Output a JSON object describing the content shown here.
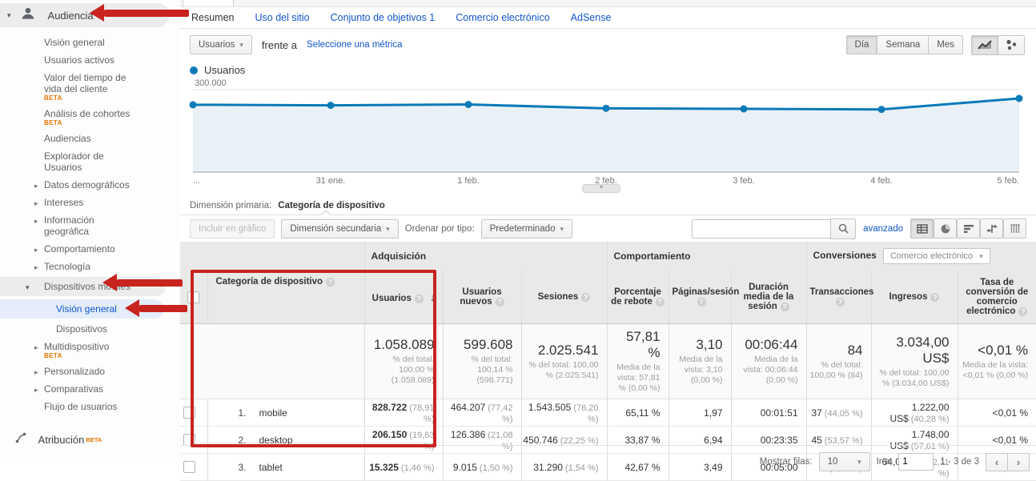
{
  "colors": {
    "accent_blue": "#1155cc",
    "chart_line": "#0d7ab8",
    "chart_fill": "#e9f1f7",
    "annotation_red": "#c8231f",
    "beta_orange": "#e37400"
  },
  "sidebar": {
    "section_label": "Audiencia",
    "items": [
      {
        "label": "Visión general"
      },
      {
        "label": "Usuarios activos"
      },
      {
        "label": "Valor del tiempo de vida del cliente",
        "beta": "BETA"
      },
      {
        "label": "Análisis de cohortes",
        "beta": "BETA"
      },
      {
        "label": "Audiencias"
      },
      {
        "label": "Explorador de Usuarios"
      },
      {
        "label": "Datos demográficos",
        "caret": "right"
      },
      {
        "label": "Intereses",
        "caret": "right"
      },
      {
        "label": "Información geográfica",
        "caret": "right"
      },
      {
        "label": "Comportamiento",
        "caret": "right"
      },
      {
        "label": "Tecnología",
        "caret": "right"
      },
      {
        "label": "Dispositivos móviles",
        "caret": "down",
        "highlight": true
      },
      {
        "label": "Visión general",
        "active": true,
        "sub": true
      },
      {
        "label": "Dispositivos",
        "sub": true
      },
      {
        "label": "Multidispositivo",
        "beta": "BETA",
        "caret": "right"
      },
      {
        "label": "Personalizado",
        "caret": "right"
      },
      {
        "label": "Comparativas",
        "caret": "right"
      },
      {
        "label": "Flujo de usuarios"
      }
    ],
    "attribution_label": "Atribución",
    "attribution_beta": "BETA"
  },
  "report_tabs": [
    {
      "label": "Resumen",
      "active": true
    },
    {
      "label": "Uso del sitio"
    },
    {
      "label": "Conjunto de objetivos 1"
    },
    {
      "label": "Comercio electrónico"
    },
    {
      "label": "AdSense"
    }
  ],
  "controls": {
    "metric_selector": "Usuarios",
    "vs_label": "frente a",
    "select_metric_link": "Seleccione una métrica",
    "granularity": [
      "Día",
      "Semana",
      "Mes"
    ],
    "granularity_active": "Día"
  },
  "chart_data": {
    "type": "line",
    "legend": [
      "Usuarios"
    ],
    "x": [
      "...",
      "31 ene.",
      "1 feb.",
      "2 feb.",
      "3 feb.",
      "4 feb.",
      "5 feb."
    ],
    "values": [
      245000,
      243000,
      246000,
      232000,
      230000,
      228000,
      268000
    ],
    "ylim": [
      0,
      300000
    ],
    "yticks": [
      "100.000",
      "200.000",
      "300.000"
    ],
    "grid": true,
    "legend_position": "top-left"
  },
  "dimension_bar": {
    "label": "Dimensión primaria:",
    "active_dimension": "Categoría de dispositivo"
  },
  "toolbar": {
    "plot_rows": "Incluir en gráfico",
    "secondary_dimension": "Dimensión secundaria",
    "sort_label": "Ordenar por tipo:",
    "sort_value": "Predeterminado",
    "search_placeholder": "",
    "advanced_link": "avanzado",
    "view_toggles": [
      "table-view",
      "percentage-view",
      "performance-view",
      "comparison-view",
      "pivot-view"
    ]
  },
  "table": {
    "groups": [
      {
        "label": "Adquisición",
        "span": 3
      },
      {
        "label": "Comportamiento",
        "span": 3
      },
      {
        "label": "Conversiones",
        "span": 3,
        "dropdown": "Comercio electrónico"
      }
    ],
    "dimension_column": "Categoría de dispositivo",
    "columns": [
      "Usuarios",
      "Usuarios nuevos",
      "Sesiones",
      "Porcentaje de rebote",
      "Páginas/sesión",
      "Duración media de la sesión",
      "Transacciones",
      "Ingresos",
      "Tasa de conversión de comercio electrónico"
    ],
    "sorted_column": "Usuarios",
    "totals": [
      {
        "value": "1.058.089",
        "sub": "% del total: 100,00 % (1.058.089)"
      },
      {
        "value": "599.608",
        "sub": "% del total: 100,14 % (598.771)"
      },
      {
        "value": "2.025.541",
        "sub": "% del total: 100,00 % (2.025.541)"
      },
      {
        "value": "57,81 %",
        "sub": "Media de la vista: 57,81 % (0,00 %)"
      },
      {
        "value": "3,10",
        "sub": "Media de la vista: 3,10 (0,00 %)"
      },
      {
        "value": "00:06:44",
        "sub": "Media de la vista: 00:06:44 (0,00 %)"
      },
      {
        "value": "84",
        "sub": "% del total: 100,00 % (84)"
      },
      {
        "value": "3.034,00 US$",
        "sub": "% del total: 100,00 % (3.034,00 US$)"
      },
      {
        "value": "<0,01 %",
        "sub": "Media de la vista: <0,01 % (0,00 %)"
      }
    ],
    "rows": [
      {
        "rank": "1.",
        "name": "mobile",
        "cells": [
          [
            "828.722",
            "(78,91 %)"
          ],
          [
            "464.207",
            "(77,42 %)"
          ],
          [
            "1.543.505",
            "(76,20 %)"
          ],
          [
            "65,11 %",
            ""
          ],
          [
            "1,97",
            ""
          ],
          [
            "00:01:51",
            ""
          ],
          [
            "37",
            "(44,05 %)"
          ],
          [
            "1.222,00 US$",
            "(40,28 %)"
          ],
          [
            "<0,01 %",
            ""
          ]
        ]
      },
      {
        "rank": "2.",
        "name": "desktop",
        "cells": [
          [
            "206.150",
            "(19,63 %)"
          ],
          [
            "126.386",
            "(21,08 %)"
          ],
          [
            "450.746",
            "(22,25 %)"
          ],
          [
            "33,87 %",
            ""
          ],
          [
            "6,94",
            ""
          ],
          [
            "00:23:35",
            ""
          ],
          [
            "45",
            "(53,57 %)"
          ],
          [
            "1.748,00 US$",
            "(57,61 %)"
          ],
          [
            "<0,01 %",
            ""
          ]
        ]
      },
      {
        "rank": "3.",
        "name": "tablet",
        "cells": [
          [
            "15.325",
            "(1,46 %)"
          ],
          [
            "9.015",
            "(1,50 %)"
          ],
          [
            "31.290",
            "(1,54 %)"
          ],
          [
            "42,67 %",
            ""
          ],
          [
            "3,49",
            ""
          ],
          [
            "00:05:00",
            ""
          ],
          [
            "2",
            "(2,38 %)"
          ],
          [
            "64,00 US$",
            "(2,11 %)"
          ],
          [
            "<0,01 %",
            ""
          ]
        ]
      }
    ]
  },
  "footer": {
    "rows_label": "Mostrar filas:",
    "rows_value": "10",
    "goto_label": "Ir a:",
    "goto_value": "1",
    "range_label": "1 - 3 de 3"
  }
}
